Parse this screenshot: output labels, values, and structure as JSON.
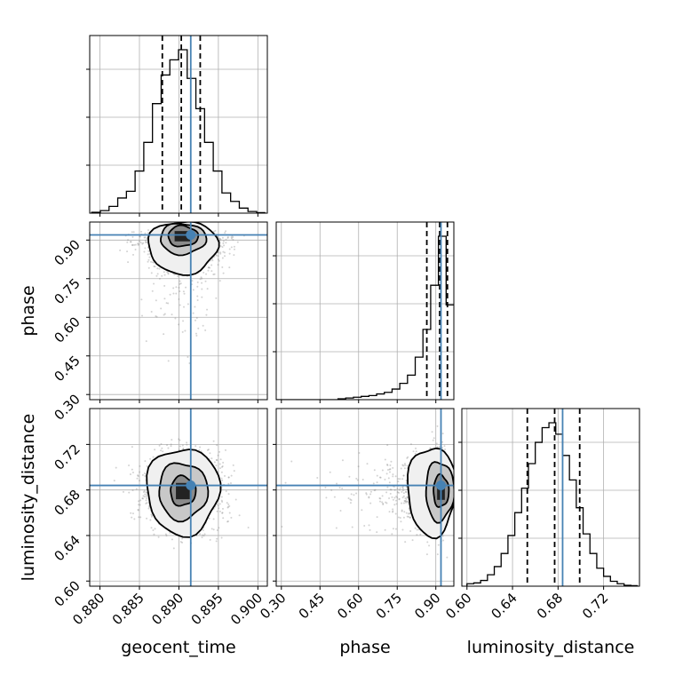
{
  "chart_data": {
    "type": "corner",
    "parameters": [
      "geocent_time",
      "phase",
      "luminosity_distance"
    ],
    "truth": {
      "geocent_time": 0.8915,
      "phase": 0.92,
      "luminosity_distance": 0.684
    },
    "colors": {
      "truth": "#4682b4",
      "hist": "#000000",
      "grid": "#b0b0b0",
      "scatter": "#808080"
    },
    "grid": true,
    "ranges": {
      "geocent_time": [
        0.8787,
        0.9012
      ],
      "phase": [
        0.28,
        0.97
      ],
      "luminosity_distance": [
        0.5955,
        0.7515
      ]
    },
    "ticks": {
      "geocent_time": [
        "0.880",
        "0.885",
        "0.890",
        "0.895",
        "0.900"
      ],
      "phase": [
        "0.30",
        "0.45",
        "0.60",
        "0.75",
        "0.90"
      ],
      "luminosity_distance": [
        "0.60",
        "0.64",
        "0.68",
        "0.72"
      ]
    },
    "histograms": {
      "geocent_time": {
        "bin_width": 0.0011,
        "bin_centers": [
          0.8795,
          0.8806,
          0.8817,
          0.8828,
          0.8839,
          0.885,
          0.8861,
          0.8872,
          0.8883,
          0.8894,
          0.8905,
          0.8916,
          0.8927,
          0.8938,
          0.8949,
          0.896,
          0.8971,
          0.8982,
          0.8993,
          0.9004
        ],
        "counts": [
          0.005,
          0.015,
          0.04,
          0.09,
          0.13,
          0.25,
          0.42,
          0.65,
          0.82,
          0.91,
          0.97,
          0.8,
          0.62,
          0.42,
          0.25,
          0.12,
          0.07,
          0.03,
          0.01,
          0.003
        ],
        "quantiles": [
          0.8879,
          0.8903,
          0.8927
        ]
      },
      "phase": {
        "bin_width": 0.03,
        "bin_centers": [
          0.295,
          0.325,
          0.355,
          0.385,
          0.415,
          0.445,
          0.475,
          0.505,
          0.535,
          0.565,
          0.595,
          0.625,
          0.655,
          0.685,
          0.715,
          0.745,
          0.775,
          0.805,
          0.835,
          0.865,
          0.895,
          0.925,
          0.955
        ],
        "counts": [
          0,
          0,
          0,
          0,
          0,
          0,
          0,
          0,
          0.005,
          0.01,
          0.015,
          0.02,
          0.025,
          0.035,
          0.045,
          0.065,
          0.1,
          0.15,
          0.26,
          0.43,
          0.7,
          1.0,
          0.58
        ],
        "quantiles": [
          0.865,
          0.915,
          0.945
        ]
      },
      "luminosity_distance": {
        "bin_width": 0.006,
        "bin_centers": [
          0.603,
          0.609,
          0.615,
          0.621,
          0.627,
          0.633,
          0.639,
          0.645,
          0.651,
          0.657,
          0.663,
          0.669,
          0.675,
          0.681,
          0.687,
          0.693,
          0.699,
          0.705,
          0.711,
          0.717,
          0.723,
          0.729,
          0.735,
          0.741,
          0.747
        ],
        "counts": [
          0.015,
          0.02,
          0.035,
          0.07,
          0.12,
          0.2,
          0.31,
          0.45,
          0.6,
          0.75,
          0.88,
          0.97,
          1.0,
          0.93,
          0.8,
          0.65,
          0.48,
          0.32,
          0.2,
          0.11,
          0.06,
          0.03,
          0.015,
          0.005,
          0.003
        ],
        "quantiles": [
          0.653,
          0.677,
          0.699
        ]
      }
    },
    "joint": [
      {
        "x": "geocent_time",
        "y": "phase",
        "x_mean": 0.8905,
        "x_std": 0.0021,
        "y_mode": 0.92,
        "y_tail": "down",
        "contours": [
          {
            "x_halfwidth": 0.0019,
            "y_low": 0.875,
            "y_high": 0.955
          },
          {
            "x_halfwidth": 0.0029,
            "y_low": 0.845,
            "y_high": 0.965
          },
          {
            "x_halfwidth": 0.0044,
            "y_low": 0.77,
            "y_high": 0.975
          }
        ]
      },
      {
        "x": "geocent_time",
        "y": "luminosity_distance",
        "x_mean": 0.8905,
        "x_std": 0.0021,
        "y_mean": 0.679,
        "y_std": 0.014,
        "contours": [
          {
            "x_halfwidth": 0.0016,
            "y_halfwidth": 0.013
          },
          {
            "x_halfwidth": 0.0031,
            "y_halfwidth": 0.025
          },
          {
            "x_halfwidth": 0.0046,
            "y_halfwidth": 0.038
          }
        ]
      },
      {
        "x": "phase",
        "y": "luminosity_distance",
        "x_mode": 0.92,
        "x_tail": "left",
        "y_mean": 0.679,
        "y_std": 0.014,
        "contours": [
          {
            "x_low": 0.89,
            "x_high": 0.95,
            "y_halfwidth": 0.014
          },
          {
            "x_low": 0.86,
            "x_high": 0.97,
            "y_halfwidth": 0.026
          },
          {
            "x_low": 0.79,
            "x_high": 0.98,
            "y_halfwidth": 0.039
          }
        ]
      }
    ]
  }
}
